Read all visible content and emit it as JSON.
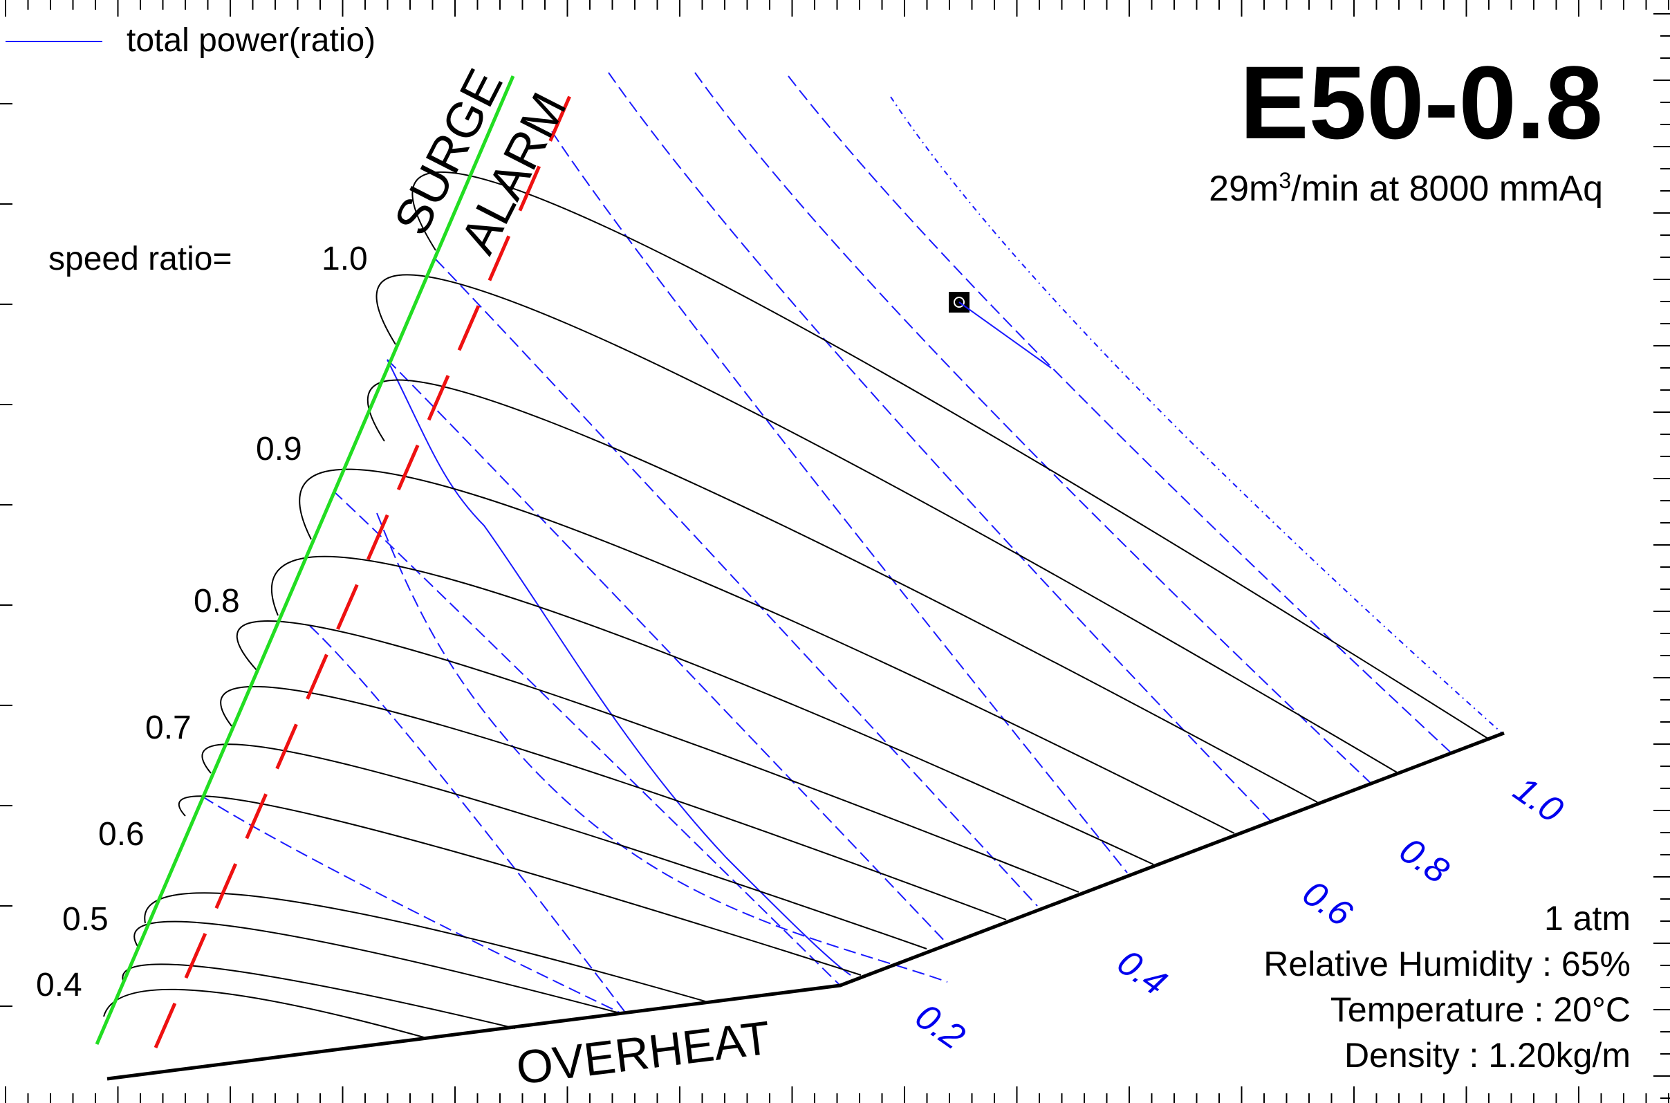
{
  "chart_data": {
    "type": "line",
    "title": "E50-0.8",
    "subtitle": "29m³/min at 8000 mmAq",
    "legend": {
      "position": "top-left",
      "entries": [
        {
          "label": "total power(ratio)",
          "color": "#1a1aff",
          "style": "solid"
        }
      ]
    },
    "grid": false,
    "speed_ratio_label": "speed ratio=",
    "speed_ratios": [
      "1.0",
      "0.9",
      "0.8",
      "0.7",
      "0.6",
      "0.5",
      "0.4"
    ],
    "power_ratios": [
      "0.2",
      "0.4",
      "0.6",
      "0.8",
      "1.0"
    ],
    "boundary_labels": {
      "surge": "SURGE",
      "alarm": "ALARM",
      "overheat": "OVERHEAT"
    },
    "conditions": [
      "1 atm",
      "Relative Humidity : 65%",
      "Temperature : 20°C",
      "Density : 1.20kg/m"
    ],
    "colors": {
      "speed_curves": "#000000",
      "power_curves": "#1a1aff",
      "surge_line": "#22dd22",
      "alarm_line": "#ee1111",
      "overheat_line": "#000000"
    }
  }
}
